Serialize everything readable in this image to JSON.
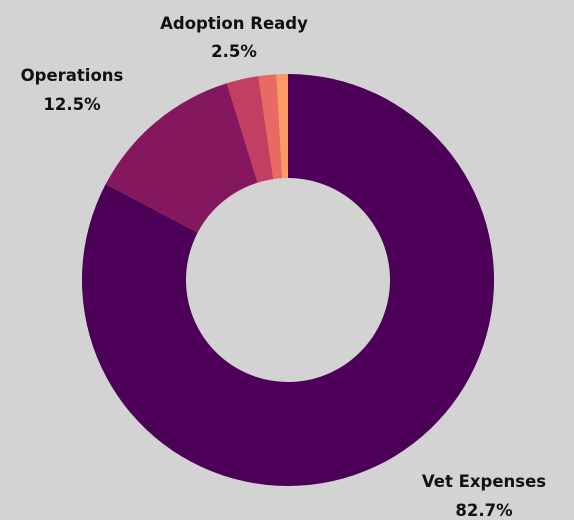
{
  "chart_data": {
    "type": "pie",
    "subtype": "donut",
    "title": "",
    "background": "#d3d3d3",
    "start": "12 o'clock, clockwise",
    "slices": [
      {
        "label": "Vet Expenses",
        "value": 82.7,
        "value_label": "82.7%",
        "color": "#4d0057",
        "show_label": true
      },
      {
        "label": "Operations",
        "value": 12.5,
        "value_label": "12.5%",
        "color": "#85175f",
        "show_label": true
      },
      {
        "label": "Adoption Ready",
        "value": 2.5,
        "value_label": "2.5%",
        "color": "#c43e63",
        "show_label": true
      },
      {
        "label": "",
        "value": 1.4,
        "value_label": "",
        "color": "#e86a62",
        "show_label": false
      },
      {
        "label": "",
        "value": 0.9,
        "value_label": "",
        "color": "#fb9a64",
        "show_label": false
      }
    ]
  }
}
